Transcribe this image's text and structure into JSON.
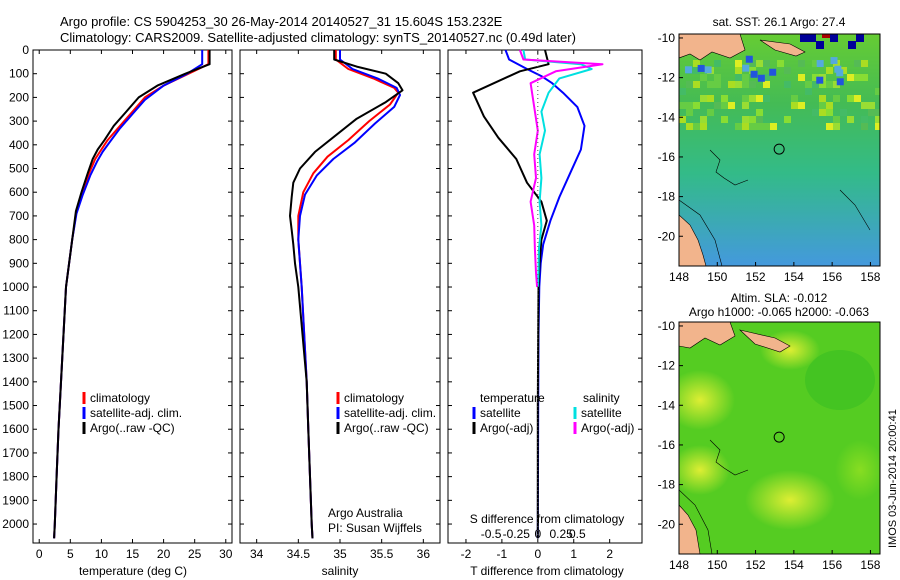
{
  "header": {
    "line1": "Argo profile: CS 5904253_30 26-May-2014 20140527_31 15.604S 153.232E",
    "line2": "Climatology: CARS2009. Satellite-adjusted climatology: synTS_20140527.nc (0.49d later)"
  },
  "colors": {
    "climatology": "#ff0000",
    "satellite": "#0000ff",
    "argo": "#000000",
    "sal_satellite": "#00e0e0",
    "sal_argo": "#ff00ff",
    "land": "#f2b48c"
  },
  "chart_data": [
    {
      "type": "line",
      "panel": "temperature",
      "xlabel": "temperature (deg C)",
      "ylabel": "",
      "xlim": [
        -1,
        31
      ],
      "xticks": [
        0,
        5,
        10,
        15,
        20,
        25,
        30
      ],
      "ylim": [
        0,
        2080
      ],
      "yticks": [
        0,
        100,
        200,
        300,
        400,
        500,
        600,
        700,
        800,
        900,
        1000,
        1100,
        1200,
        1300,
        1400,
        1500,
        1600,
        1700,
        1800,
        1900,
        2000
      ],
      "legend": [
        "climatology",
        "satellite-adj. clim.",
        "Argo(..raw -QC)"
      ],
      "series": [
        {
          "name": "climatology",
          "color": "red",
          "points": [
            [
              27.2,
              0
            ],
            [
              27.2,
              60
            ],
            [
              24,
              100
            ],
            [
              20,
              150
            ],
            [
              17,
              200
            ],
            [
              15,
              260
            ],
            [
              13,
              320
            ],
            [
              11,
              380
            ],
            [
              10,
              420
            ],
            [
              9,
              460
            ],
            [
              8,
              520
            ],
            [
              7,
              600
            ],
            [
              6,
              680
            ],
            [
              5.3,
              800
            ],
            [
              4.8,
              900
            ],
            [
              4.3,
              1000
            ],
            [
              3.9,
              1200
            ],
            [
              3.5,
              1400
            ],
            [
              3.1,
              1600
            ],
            [
              2.8,
              1800
            ],
            [
              2.5,
              2000
            ],
            [
              2.4,
              2060
            ]
          ]
        },
        {
          "name": "satellite-adj. clim.",
          "color": "blue",
          "points": [
            [
              26.2,
              0
            ],
            [
              26.2,
              60
            ],
            [
              23.8,
              100
            ],
            [
              20,
              150
            ],
            [
              17,
              210
            ],
            [
              15,
              270
            ],
            [
              13,
              330
            ],
            [
              11.3,
              390
            ],
            [
              10.2,
              430
            ],
            [
              9.3,
              470
            ],
            [
              8.2,
              530
            ],
            [
              7,
              610
            ],
            [
              6,
              690
            ],
            [
              5.3,
              800
            ],
            [
              4.8,
              900
            ],
            [
              4.3,
              1000
            ],
            [
              3.9,
              1200
            ],
            [
              3.5,
              1400
            ],
            [
              3.1,
              1600
            ],
            [
              2.8,
              1800
            ],
            [
              2.5,
              2000
            ],
            [
              2.4,
              2060
            ]
          ]
        },
        {
          "name": "Argo(..raw -QC)",
          "color": "black",
          "points": [
            [
              27.4,
              0
            ],
            [
              27.4,
              60
            ],
            [
              23.5,
              100
            ],
            [
              19,
              150
            ],
            [
              16,
              200
            ],
            [
              14,
              260
            ],
            [
              12,
              320
            ],
            [
              10.5,
              380
            ],
            [
              9.4,
              420
            ],
            [
              8.6,
              460
            ],
            [
              7.8,
              520
            ],
            [
              6.8,
              600
            ],
            [
              5.9,
              680
            ],
            [
              5.3,
              800
            ],
            [
              4.8,
              900
            ],
            [
              4.3,
              1000
            ],
            [
              3.9,
              1200
            ],
            [
              3.5,
              1400
            ],
            [
              3.1,
              1600
            ],
            [
              2.8,
              1800
            ],
            [
              2.5,
              2000
            ],
            [
              2.4,
              2060
            ]
          ]
        }
      ]
    },
    {
      "type": "line",
      "panel": "salinity",
      "xlabel": "salinity",
      "xlim": [
        33.8,
        36.2
      ],
      "xticks": [
        34,
        34.5,
        35,
        35.5,
        36
      ],
      "ylim": [
        0,
        2080
      ],
      "legend": [
        "climatology",
        "satellite-adj. clim.",
        "Argo(..raw -QC)"
      ],
      "credit": [
        "Argo Australia",
        "PI: Susan Wijffels"
      ],
      "series": [
        {
          "name": "climatology",
          "color": "red",
          "points": [
            [
              34.95,
              0
            ],
            [
              34.95,
              40
            ],
            [
              35.1,
              80
            ],
            [
              35.4,
              120
            ],
            [
              35.65,
              160
            ],
            [
              35.7,
              180
            ],
            [
              35.6,
              230
            ],
            [
              35.35,
              300
            ],
            [
              35.1,
              380
            ],
            [
              34.85,
              450
            ],
            [
              34.68,
              520
            ],
            [
              34.56,
              600
            ],
            [
              34.5,
              700
            ],
            [
              34.5,
              800
            ],
            [
              34.52,
              900
            ],
            [
              34.54,
              1000
            ],
            [
              34.57,
              1200
            ],
            [
              34.6,
              1400
            ],
            [
              34.62,
              1600
            ],
            [
              34.64,
              1800
            ],
            [
              34.66,
              2000
            ],
            [
              34.67,
              2060
            ]
          ]
        },
        {
          "name": "satellite-adj. clim.",
          "color": "blue",
          "points": [
            [
              35,
              0
            ],
            [
              35,
              40
            ],
            [
              35.15,
              80
            ],
            [
              35.45,
              120
            ],
            [
              35.68,
              160
            ],
            [
              35.72,
              190
            ],
            [
              35.65,
              240
            ],
            [
              35.42,
              310
            ],
            [
              35.18,
              390
            ],
            [
              34.92,
              460
            ],
            [
              34.72,
              530
            ],
            [
              34.58,
              610
            ],
            [
              34.52,
              700
            ],
            [
              34.5,
              800
            ],
            [
              34.52,
              900
            ],
            [
              34.54,
              1000
            ],
            [
              34.57,
              1200
            ],
            [
              34.6,
              1400
            ],
            [
              34.62,
              1600
            ],
            [
              34.64,
              1800
            ],
            [
              34.66,
              2000
            ],
            [
              34.67,
              2060
            ]
          ]
        },
        {
          "name": "Argo(..raw -QC)",
          "color": "black",
          "points": [
            [
              34.93,
              0
            ],
            [
              34.93,
              40
            ],
            [
              35.2,
              70
            ],
            [
              35.55,
              100
            ],
            [
              35.7,
              140
            ],
            [
              35.75,
              170
            ],
            [
              35.55,
              220
            ],
            [
              35.2,
              290
            ],
            [
              34.95,
              360
            ],
            [
              34.7,
              430
            ],
            [
              34.52,
              500
            ],
            [
              34.44,
              560
            ],
            [
              34.42,
              620
            ],
            [
              34.4,
              700
            ],
            [
              34.42,
              760
            ],
            [
              34.44,
              820
            ],
            [
              34.46,
              900
            ],
            [
              34.5,
              1000
            ],
            [
              34.55,
              1200
            ],
            [
              34.6,
              1400
            ],
            [
              34.62,
              1600
            ],
            [
              34.64,
              1800
            ],
            [
              34.66,
              2000
            ],
            [
              34.67,
              2060
            ]
          ]
        }
      ]
    },
    {
      "type": "line",
      "panel": "difference",
      "xlabel": "T difference from climatology",
      "xlabel2": "S difference from climatology",
      "xlim": [
        -2.5,
        2.9
      ],
      "xticks": [
        -2,
        -1,
        0,
        1,
        2
      ],
      "xticks2_labels": [
        "-0.5",
        "-0.25",
        "0",
        "0.25",
        "0.5"
      ],
      "ylim": [
        0,
        2080
      ],
      "legend_temperature_title": "temperature",
      "legend_salinity_title": "salinity",
      "legend_entries": [
        "satellite",
        "Argo(-adj)",
        "satellite",
        "Argo(-adj)"
      ],
      "series": [
        {
          "name": "satellite",
          "color": "blue",
          "points": [
            [
              -0.9,
              0
            ],
            [
              -0.8,
              40
            ],
            [
              -0.3,
              80
            ],
            [
              0.1,
              110
            ],
            [
              0.4,
              140
            ],
            [
              0.7,
              180
            ],
            [
              1.1,
              240
            ],
            [
              1.3,
              320
            ],
            [
              1.2,
              420
            ],
            [
              0.9,
              520
            ],
            [
              0.6,
              620
            ],
            [
              0.35,
              720
            ],
            [
              0.15,
              820
            ],
            [
              0.08,
              900
            ],
            [
              0.04,
              1000
            ],
            [
              0.02,
              1200
            ],
            [
              0.01,
              1500
            ],
            [
              0,
              2060
            ]
          ]
        },
        {
          "name": "Argo(-adj)",
          "color": "black",
          "points": [
            [
              0.2,
              0
            ],
            [
              0.3,
              60
            ],
            [
              -0.5,
              90
            ],
            [
              -1.8,
              180
            ],
            [
              -1.5,
              280
            ],
            [
              -1.1,
              370
            ],
            [
              -0.6,
              460
            ],
            [
              -0.3,
              560
            ],
            [
              0.1,
              640
            ],
            [
              0.25,
              720
            ],
            [
              0.1,
              800
            ],
            [
              0.05,
              900
            ],
            [
              0.02,
              1000
            ],
            [
              0.01,
              1200
            ],
            [
              0,
              1500
            ],
            [
              0,
              2060
            ]
          ]
        },
        {
          "name": "satellite",
          "color": "cyan",
          "points": [
            [
              -0.4,
              0
            ],
            [
              -0.35,
              40
            ],
            [
              1.2,
              60
            ],
            [
              1.5,
              80
            ],
            [
              0.6,
              120
            ],
            [
              0.3,
              180
            ],
            [
              0.1,
              260
            ],
            [
              0.2,
              340
            ],
            [
              0.05,
              440
            ],
            [
              0.1,
              540
            ],
            [
              0.05,
              640
            ],
            [
              0.1,
              740
            ],
            [
              0.03,
              840
            ],
            [
              0.02,
              940
            ],
            [
              0,
              1000
            ]
          ]
        },
        {
          "name": "Argo(-adj)",
          "color": "magenta",
          "points": [
            [
              -0.5,
              0
            ],
            [
              -0.4,
              40
            ],
            [
              1.8,
              60
            ],
            [
              0.5,
              90
            ],
            [
              -0.2,
              140
            ],
            [
              -0.1,
              240
            ],
            [
              0,
              340
            ],
            [
              -0.1,
              440
            ],
            [
              -0.05,
              540
            ],
            [
              -0.2,
              640
            ],
            [
              -0.1,
              740
            ],
            [
              -0.08,
              840
            ],
            [
              -0.05,
              940
            ],
            [
              -0.02,
              1000
            ]
          ]
        }
      ]
    },
    {
      "type": "heatmap",
      "panel": "sst_map",
      "title": "sat. SST: 26.1  Argo: 27.4",
      "xlim": [
        148,
        158.5
      ],
      "xticks": [
        148,
        150,
        152,
        154,
        156,
        158
      ],
      "ylim": [
        -21.5,
        -9.8
      ],
      "yticks": [
        -10,
        -12,
        -14,
        -16,
        -18,
        -20
      ],
      "argo_position": {
        "lon": 153.232,
        "lat": -15.604
      }
    },
    {
      "type": "heatmap",
      "panel": "sla_map",
      "title": "Altim. SLA: -0.012",
      "title2": "Argo h1000: -0.065 h2000: -0.063",
      "xlim": [
        148,
        158.5
      ],
      "xticks": [
        148,
        150,
        152,
        154,
        156,
        158
      ],
      "ylim": [
        -21.5,
        -9.8
      ],
      "yticks": [
        -10,
        -12,
        -14,
        -16,
        -18,
        -20
      ],
      "argo_position": {
        "lon": 153.232,
        "lat": -15.604
      }
    }
  ],
  "stamp": "IMOS 03-Jun-2014 20:00:41"
}
